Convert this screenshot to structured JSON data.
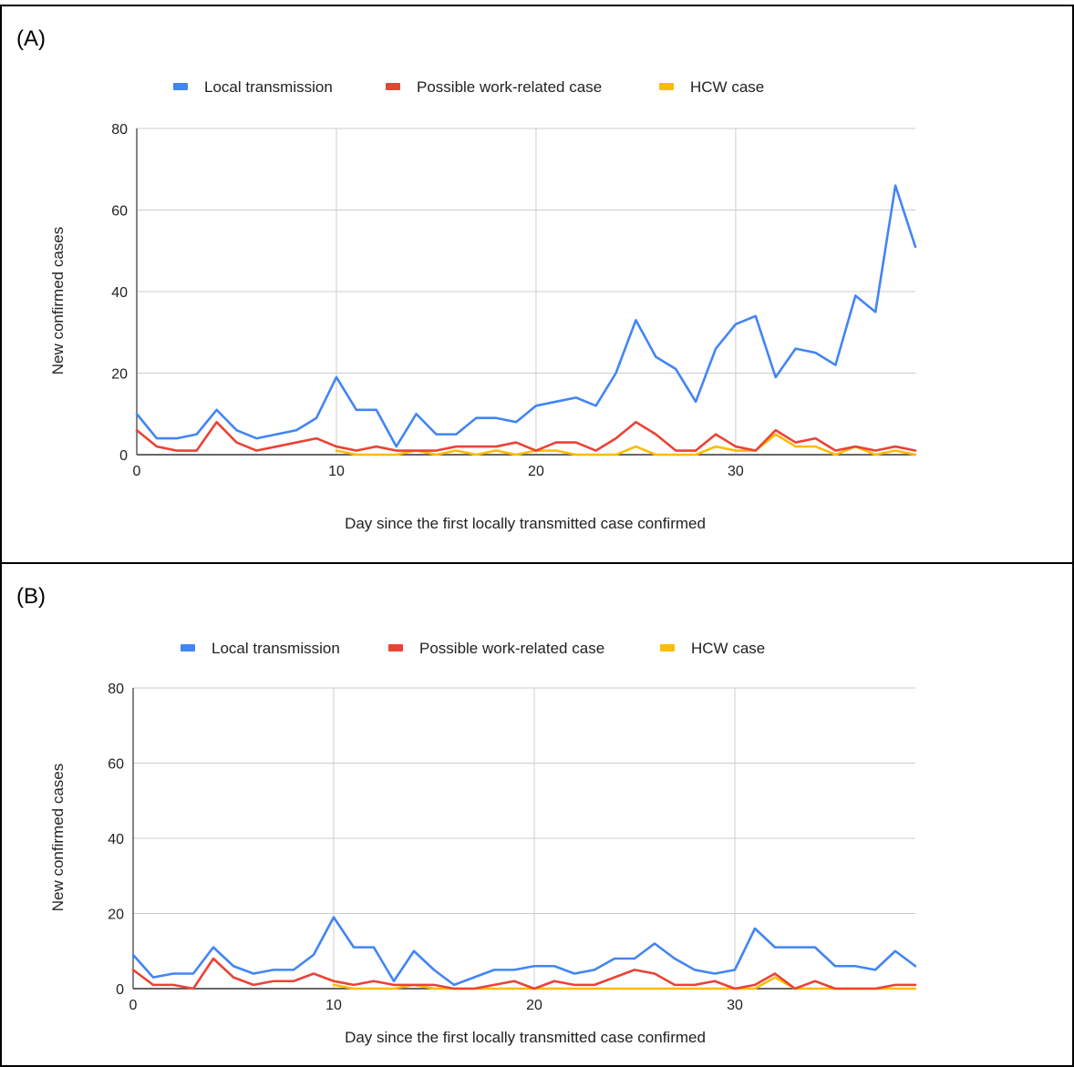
{
  "panels": [
    {
      "label": "(A)"
    },
    {
      "label": "(B)"
    }
  ],
  "colors": {
    "local": "#4285f4",
    "work": "#ea4335",
    "hcw": "#fbbc04",
    "grid": "#cccccc",
    "axis": "#333333",
    "text": "#222222"
  },
  "chart_data": [
    {
      "type": "line",
      "xlabel": "Day since the first locally transmitted case confirmed",
      "ylabel": "New confirmed cases",
      "xlim": [
        0,
        39
      ],
      "ylim": [
        0,
        80
      ],
      "xticks": [
        0,
        10,
        20,
        30
      ],
      "yticks": [
        0,
        20,
        40,
        60,
        80
      ],
      "grid": true,
      "legend": "top",
      "series": [
        {
          "name": "Local transmission",
          "color": "#4285f4",
          "start": 0,
          "values": [
            10,
            4,
            4,
            5,
            11,
            6,
            4,
            5,
            6,
            9,
            19,
            11,
            11,
            2,
            10,
            5,
            5,
            9,
            9,
            8,
            12,
            13,
            14,
            12,
            20,
            33,
            24,
            21,
            13,
            26,
            32,
            34,
            19,
            26,
            25,
            22,
            39,
            35,
            66,
            51
          ]
        },
        {
          "name": "Possible work-related case",
          "color": "#ea4335",
          "start": 0,
          "values": [
            6,
            2,
            1,
            1,
            8,
            3,
            1,
            2,
            3,
            4,
            2,
            1,
            2,
            1,
            1,
            1,
            2,
            2,
            2,
            3,
            1,
            3,
            3,
            1,
            4,
            8,
            5,
            1,
            1,
            5,
            2,
            1,
            6,
            3,
            4,
            1,
            2,
            1,
            2,
            1
          ]
        },
        {
          "name": "HCW case",
          "color": "#fbbc04",
          "start": 10,
          "values": [
            1,
            0,
            0,
            0,
            1,
            0,
            1,
            0,
            1,
            0,
            1,
            1,
            0,
            0,
            0,
            2,
            0,
            0,
            0,
            2,
            1,
            1,
            5,
            2,
            2,
            0,
            2,
            0,
            1,
            0
          ]
        }
      ]
    },
    {
      "type": "line",
      "xlabel": "Day since the first locally transmitted case confirmed",
      "ylabel": "New confirmed cases",
      "xlim": [
        0,
        39
      ],
      "ylim": [
        0,
        80
      ],
      "xticks": [
        0,
        10,
        20,
        30
      ],
      "yticks": [
        0,
        20,
        40,
        60,
        80
      ],
      "grid": true,
      "legend": "top",
      "series": [
        {
          "name": "Local transmission",
          "color": "#4285f4",
          "start": 0,
          "values": [
            9,
            3,
            4,
            4,
            11,
            6,
            4,
            5,
            5,
            9,
            19,
            11,
            11,
            2,
            10,
            5,
            1,
            3,
            5,
            5,
            6,
            6,
            4,
            5,
            8,
            8,
            12,
            8,
            5,
            4,
            5,
            16,
            11,
            11,
            11,
            6,
            6,
            5,
            10,
            6
          ]
        },
        {
          "name": "Possible work-related case",
          "color": "#ea4335",
          "start": 0,
          "values": [
            5,
            1,
            1,
            0,
            8,
            3,
            1,
            2,
            2,
            4,
            2,
            1,
            2,
            1,
            1,
            1,
            0,
            0,
            1,
            2,
            0,
            2,
            1,
            1,
            3,
            5,
            4,
            1,
            1,
            2,
            0,
            1,
            4,
            0,
            2,
            0,
            0,
            0,
            1,
            1
          ]
        },
        {
          "name": "HCW case",
          "color": "#fbbc04",
          "start": 10,
          "values": [
            1,
            0,
            0,
            0,
            1,
            0,
            0,
            0,
            0,
            0,
            0,
            0,
            0,
            0,
            0,
            0,
            0,
            0,
            0,
            0,
            0,
            0,
            3,
            0,
            0,
            0,
            0,
            0,
            0,
            0
          ]
        }
      ]
    }
  ]
}
